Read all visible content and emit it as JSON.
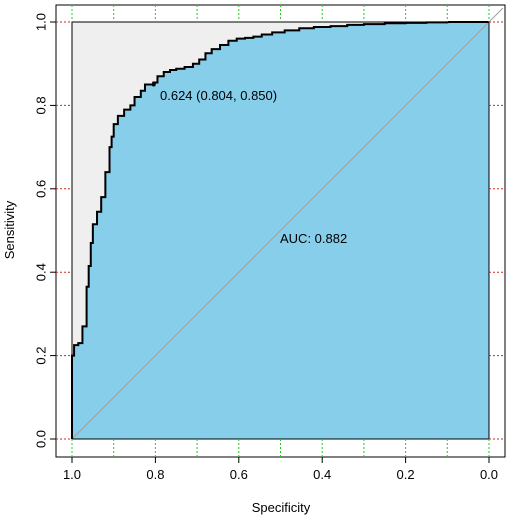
{
  "chart_data": {
    "type": "line",
    "title": "",
    "xlabel": "Specificity",
    "ylabel": "Sensitivity",
    "xlim": [
      1.0,
      0.0
    ],
    "ylim": [
      0.0,
      1.0
    ],
    "x_reversed": true,
    "grid": "dotted ticks at major divisions (x green, y red)",
    "x_ticks": [
      "1.0",
      "0.8",
      "0.6",
      "0.4",
      "0.2",
      "0.0"
    ],
    "y_ticks": [
      "0.0",
      "0.2",
      "0.4",
      "0.6",
      "0.8",
      "1.0"
    ],
    "series": [
      {
        "specificity": [
          1.0,
          1.0,
          0.995,
          0.995,
          0.985,
          0.985,
          0.975,
          0.975,
          0.965,
          0.965,
          0.96,
          0.96,
          0.955,
          0.955,
          0.95,
          0.95,
          0.94,
          0.94,
          0.93,
          0.93,
          0.92,
          0.92,
          0.91,
          0.91,
          0.905,
          0.905,
          0.9,
          0.9,
          0.89,
          0.89,
          0.875,
          0.875,
          0.86,
          0.86,
          0.85,
          0.85,
          0.835,
          0.835,
          0.825,
          0.825,
          0.805,
          0.805,
          0.795,
          0.795,
          0.78,
          0.78,
          0.765,
          0.765,
          0.75,
          0.75,
          0.73,
          0.73,
          0.71,
          0.71,
          0.695,
          0.695,
          0.68,
          0.68,
          0.665,
          0.665,
          0.645,
          0.645,
          0.625,
          0.625,
          0.605,
          0.605,
          0.585,
          0.585,
          0.565,
          0.565,
          0.545,
          0.545,
          0.52,
          0.52,
          0.49,
          0.49,
          0.455,
          0.455,
          0.42,
          0.42,
          0.38,
          0.38,
          0.34,
          0.34,
          0.3,
          0.3,
          0.25,
          0.25,
          0.2,
          0.2,
          0.15,
          0.15,
          0.1,
          0.1,
          0.05,
          0.05,
          0.0
        ],
        "sensitivity": [
          0.0,
          0.2,
          0.2,
          0.225,
          0.225,
          0.23,
          0.23,
          0.27,
          0.27,
          0.365,
          0.365,
          0.415,
          0.415,
          0.47,
          0.47,
          0.515,
          0.515,
          0.545,
          0.545,
          0.58,
          0.58,
          0.64,
          0.64,
          0.7,
          0.7,
          0.725,
          0.725,
          0.755,
          0.755,
          0.775,
          0.775,
          0.79,
          0.79,
          0.8,
          0.8,
          0.82,
          0.82,
          0.835,
          0.835,
          0.85,
          0.85,
          0.855,
          0.855,
          0.87,
          0.87,
          0.88,
          0.88,
          0.885,
          0.885,
          0.888,
          0.888,
          0.892,
          0.892,
          0.9,
          0.9,
          0.91,
          0.91,
          0.925,
          0.925,
          0.935,
          0.935,
          0.945,
          0.945,
          0.955,
          0.955,
          0.96,
          0.96,
          0.962,
          0.962,
          0.965,
          0.965,
          0.97,
          0.97,
          0.975,
          0.975,
          0.98,
          0.98,
          0.985,
          0.985,
          0.988,
          0.988,
          0.99,
          0.99,
          0.993,
          0.993,
          0.995,
          0.995,
          0.997,
          0.997,
          0.998,
          0.998,
          0.999,
          0.999,
          1.0,
          1.0,
          1.0,
          1.0
        ]
      }
    ],
    "best_threshold": {
      "specificity": 0.804,
      "sensitivity": 0.85,
      "label": "0.624 (0.804, 0.850)"
    },
    "auc_label": "AUC: 0.882",
    "colors": {
      "auc_fill": "#87ceeb",
      "upper_fill": "#efefef",
      "curve": "#000000",
      "diagonal": "#a0a0a0",
      "x_grid": "#22cc22",
      "y_grid": "#dd2222"
    }
  }
}
